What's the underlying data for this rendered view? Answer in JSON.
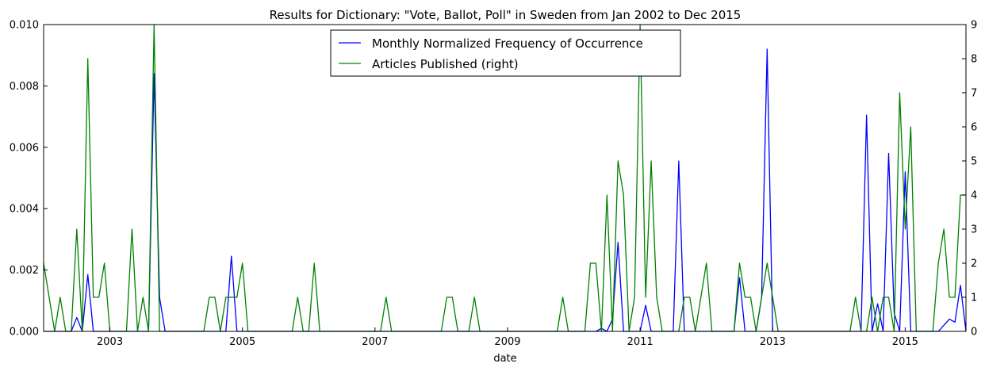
{
  "chart_data": {
    "type": "line",
    "title": "Results for Dictionary: \"Vote, Ballot, Poll\" in Sweden from Jan 2002 to Dec 2015",
    "xlabel": "date",
    "ylabel": "",
    "ylabel_right": "",
    "x_start": "2002-01",
    "x_end": "2015-12",
    "x_ticks": [
      "2003",
      "2005",
      "2007",
      "2009",
      "2011",
      "2013",
      "2015"
    ],
    "ylim": [
      0,
      0.01
    ],
    "y_ticks": [
      "0.000",
      "0.002",
      "0.004",
      "0.006",
      "0.008",
      "0.010"
    ],
    "ylim_right": [
      0,
      9
    ],
    "y_ticks_right": [
      "0",
      "1",
      "2",
      "3",
      "4",
      "5",
      "6",
      "7",
      "8",
      "9"
    ],
    "legend_position": "top-center",
    "grid": false,
    "series": [
      {
        "name": "Monthly Normalized Frequency of Occurrence",
        "axis": "left",
        "color": "#0000ff",
        "points": [
          [
            "2002-07",
            0.00045
          ],
          [
            "2002-08",
            0
          ],
          [
            "2002-09",
            0.00185
          ],
          [
            "2002-10",
            0
          ],
          [
            "2003-08",
            0
          ],
          [
            "2003-09",
            0.0084
          ],
          [
            "2003-10",
            0.0011
          ],
          [
            "2003-11",
            0
          ],
          [
            "2004-10",
            0
          ],
          [
            "2004-11",
            0.00245
          ],
          [
            "2004-12",
            0
          ],
          [
            "2008-01",
            0
          ],
          [
            "2008-02",
            0
          ],
          [
            "2010-05",
            0
          ],
          [
            "2010-06",
            0.0001
          ],
          [
            "2010-07",
            0
          ],
          [
            "2010-08",
            0.0004
          ],
          [
            "2010-09",
            0.0029
          ],
          [
            "2010-10",
            0
          ],
          [
            "2011-01",
            0
          ],
          [
            "2011-02",
            0.00085
          ],
          [
            "2011-03",
            0
          ],
          [
            "2011-07",
            0
          ],
          [
            "2011-08",
            0.00555
          ],
          [
            "2011-09",
            0
          ],
          [
            "2012-06",
            0
          ],
          [
            "2012-07",
            0.00175
          ],
          [
            "2012-08",
            0
          ],
          [
            "2012-10",
            0
          ],
          [
            "2012-11",
            0.0011
          ],
          [
            "2012-12",
            0.0092
          ],
          [
            "2013-01",
            0
          ],
          [
            "2014-05",
            0
          ],
          [
            "2014-06",
            0.00705
          ],
          [
            "2014-07",
            0
          ],
          [
            "2014-08",
            0.0009
          ],
          [
            "2014-09",
            0
          ],
          [
            "2014-10",
            0.0058
          ],
          [
            "2014-11",
            0.0006
          ],
          [
            "2014-12",
            0
          ],
          [
            "2015-01",
            0.0052
          ],
          [
            "2015-02",
            0
          ],
          [
            "2015-07",
            0
          ],
          [
            "2015-08",
            0.0002
          ],
          [
            "2015-09",
            0.0004
          ],
          [
            "2015-10",
            0.0003
          ],
          [
            "2015-11",
            0.0015
          ],
          [
            "2015-12",
            0
          ]
        ]
      },
      {
        "name": "Articles Published (right)",
        "axis": "right",
        "color": "#008000",
        "points": [
          [
            "2002-01",
            2
          ],
          [
            "2002-02",
            1
          ],
          [
            "2002-03",
            0
          ],
          [
            "2002-04",
            1
          ],
          [
            "2002-05",
            0
          ],
          [
            "2002-06",
            0
          ],
          [
            "2002-07",
            3
          ],
          [
            "2002-08",
            0
          ],
          [
            "2002-09",
            8
          ],
          [
            "2002-10",
            1
          ],
          [
            "2002-11",
            1
          ],
          [
            "2002-12",
            2
          ],
          [
            "2003-01",
            0
          ],
          [
            "2003-02",
            0
          ],
          [
            "2003-03",
            0
          ],
          [
            "2003-04",
            0
          ],
          [
            "2003-05",
            3
          ],
          [
            "2003-06",
            0
          ],
          [
            "2003-07",
            1
          ],
          [
            "2003-08",
            0
          ],
          [
            "2003-09",
            9
          ],
          [
            "2003-10",
            0
          ],
          [
            "2003-11",
            0
          ],
          [
            "2003-12",
            0
          ],
          [
            "2004-01",
            0
          ],
          [
            "2004-02",
            0
          ],
          [
            "2004-03",
            0
          ],
          [
            "2004-04",
            0
          ],
          [
            "2004-05",
            0
          ],
          [
            "2004-06",
            0
          ],
          [
            "2004-07",
            1
          ],
          [
            "2004-08",
            1
          ],
          [
            "2004-09",
            0
          ],
          [
            "2004-10",
            1
          ],
          [
            "2004-11",
            1
          ],
          [
            "2004-12",
            1
          ],
          [
            "2005-01",
            2
          ],
          [
            "2005-02",
            0
          ],
          [
            "2005-03",
            0
          ],
          [
            "2005-04",
            0
          ],
          [
            "2005-05",
            0
          ],
          [
            "2005-06",
            0
          ],
          [
            "2005-07",
            0
          ],
          [
            "2005-08",
            0
          ],
          [
            "2005-09",
            0
          ],
          [
            "2005-10",
            0
          ],
          [
            "2005-11",
            1
          ],
          [
            "2005-12",
            0
          ],
          [
            "2006-01",
            0
          ],
          [
            "2006-02",
            2
          ],
          [
            "2006-03",
            0
          ],
          [
            "2006-04",
            0
          ],
          [
            "2006-05",
            0
          ],
          [
            "2006-06",
            0
          ],
          [
            "2006-07",
            0
          ],
          [
            "2006-08",
            0
          ],
          [
            "2006-09",
            0
          ],
          [
            "2006-10",
            0
          ],
          [
            "2006-11",
            0
          ],
          [
            "2006-12",
            0
          ],
          [
            "2007-01",
            0
          ],
          [
            "2007-02",
            0
          ],
          [
            "2007-03",
            1
          ],
          [
            "2007-04",
            0
          ],
          [
            "2007-05",
            0
          ],
          [
            "2007-06",
            0
          ],
          [
            "2007-07",
            0
          ],
          [
            "2007-08",
            0
          ],
          [
            "2007-09",
            0
          ],
          [
            "2007-10",
            0
          ],
          [
            "2007-11",
            0
          ],
          [
            "2007-12",
            0
          ],
          [
            "2008-01",
            0
          ],
          [
            "2008-02",
            1
          ],
          [
            "2008-03",
            1
          ],
          [
            "2008-04",
            0
          ],
          [
            "2008-05",
            0
          ],
          [
            "2008-06",
            0
          ],
          [
            "2008-07",
            1
          ],
          [
            "2008-08",
            0
          ],
          [
            "2008-09",
            0
          ],
          [
            "2008-10",
            0
          ],
          [
            "2008-11",
            0
          ],
          [
            "2008-12",
            0
          ],
          [
            "2009-01",
            0
          ],
          [
            "2009-02",
            0
          ],
          [
            "2009-03",
            0
          ],
          [
            "2009-04",
            0
          ],
          [
            "2009-05",
            0
          ],
          [
            "2009-06",
            0
          ],
          [
            "2009-07",
            0
          ],
          [
            "2009-08",
            0
          ],
          [
            "2009-09",
            0
          ],
          [
            "2009-10",
            0
          ],
          [
            "2009-11",
            1
          ],
          [
            "2009-12",
            0
          ],
          [
            "2010-01",
            0
          ],
          [
            "2010-02",
            0
          ],
          [
            "2010-03",
            0
          ],
          [
            "2010-04",
            2
          ],
          [
            "2010-05",
            2
          ],
          [
            "2010-06",
            0
          ],
          [
            "2010-07",
            4
          ],
          [
            "2010-08",
            0
          ],
          [
            "2010-09",
            5
          ],
          [
            "2010-10",
            4
          ],
          [
            "2010-11",
            0
          ],
          [
            "2010-12",
            1
          ],
          [
            "2011-01",
            9
          ],
          [
            "2011-02",
            1
          ],
          [
            "2011-03",
            5
          ],
          [
            "2011-04",
            1
          ],
          [
            "2011-05",
            0
          ],
          [
            "2011-06",
            0
          ],
          [
            "2011-07",
            0
          ],
          [
            "2011-08",
            0
          ],
          [
            "2011-09",
            1
          ],
          [
            "2011-10",
            1
          ],
          [
            "2011-11",
            0
          ],
          [
            "2011-12",
            1
          ],
          [
            "2012-01",
            2
          ],
          [
            "2012-02",
            0
          ],
          [
            "2012-03",
            0
          ],
          [
            "2012-04",
            0
          ],
          [
            "2012-05",
            0
          ],
          [
            "2012-06",
            0
          ],
          [
            "2012-07",
            2
          ],
          [
            "2012-08",
            1
          ],
          [
            "2012-09",
            1
          ],
          [
            "2012-10",
            0
          ],
          [
            "2012-11",
            1
          ],
          [
            "2012-12",
            2
          ],
          [
            "2013-01",
            1
          ],
          [
            "2013-02",
            0
          ],
          [
            "2013-03",
            0
          ],
          [
            "2013-04",
            0
          ],
          [
            "2013-05",
            0
          ],
          [
            "2013-06",
            0
          ],
          [
            "2013-07",
            0
          ],
          [
            "2013-08",
            0
          ],
          [
            "2013-09",
            0
          ],
          [
            "2013-10",
            0
          ],
          [
            "2013-11",
            0
          ],
          [
            "2013-12",
            0
          ],
          [
            "2014-01",
            0
          ],
          [
            "2014-02",
            0
          ],
          [
            "2014-03",
            0
          ],
          [
            "2014-04",
            1
          ],
          [
            "2014-05",
            0
          ],
          [
            "2014-06",
            0
          ],
          [
            "2014-07",
            1
          ],
          [
            "2014-08",
            0
          ],
          [
            "2014-09",
            1
          ],
          [
            "2014-10",
            1
          ],
          [
            "2014-11",
            0
          ],
          [
            "2014-12",
            7
          ],
          [
            "2015-01",
            3
          ],
          [
            "2015-02",
            6
          ],
          [
            "2015-03",
            0
          ],
          [
            "2015-04",
            0
          ],
          [
            "2015-05",
            0
          ],
          [
            "2015-06",
            0
          ],
          [
            "2015-07",
            2
          ],
          [
            "2015-08",
            3
          ],
          [
            "2015-09",
            1
          ],
          [
            "2015-10",
            1
          ],
          [
            "2015-11",
            4
          ],
          [
            "2015-12",
            4
          ]
        ]
      }
    ]
  }
}
